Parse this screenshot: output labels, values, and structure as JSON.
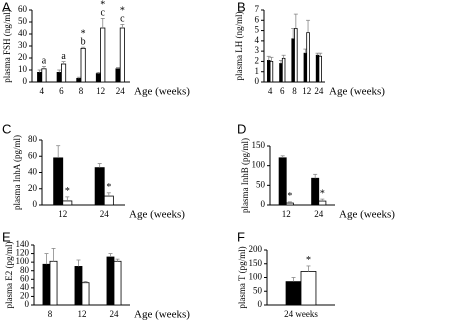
{
  "chart_data": [
    {
      "type": "bar",
      "title": "A",
      "ylabel": "plasma FSH (ng/ml)",
      "xlabel": "Age (weeks)",
      "categories": [
        "4",
        "6",
        "8",
        "12",
        "24"
      ],
      "ylim": [
        0,
        60
      ],
      "yticks": [
        0,
        10,
        20,
        30,
        40,
        50,
        60
      ],
      "series": [
        {
          "color": "#000000",
          "values": [
            8,
            8,
            3,
            7,
            11
          ],
          "errors": [
            2,
            2,
            1,
            1,
            1
          ]
        },
        {
          "color": "#ffffff",
          "values": [
            11,
            15,
            28,
            45,
            45
          ],
          "errors": [
            2,
            2,
            1,
            8,
            3
          ],
          "annotations": [
            [
              "a"
            ],
            [
              "a"
            ],
            [
              "b",
              "*"
            ],
            [
              "c",
              "*"
            ],
            [
              "c",
              "*"
            ]
          ]
        }
      ]
    },
    {
      "type": "bar",
      "title": "B",
      "ylabel": "plasma LH (ng/ml)",
      "xlabel": "Age (weeks)",
      "categories": [
        "4",
        "6",
        "8",
        "12",
        "24"
      ],
      "ylim": [
        0,
        7
      ],
      "yticks": [
        0,
        1,
        2,
        3,
        4,
        5,
        6,
        7
      ],
      "series": [
        {
          "color": "#000000",
          "values": [
            2.1,
            1.8,
            4.2,
            2.8,
            2.6
          ],
          "errors": [
            0.4,
            0.3,
            1.0,
            0.4,
            0.2
          ]
        },
        {
          "color": "#ffffff",
          "values": [
            2.0,
            2.3,
            5.2,
            4.8,
            2.5
          ],
          "errors": [
            0.4,
            0.3,
            1.4,
            1.2,
            0.3
          ]
        }
      ]
    },
    {
      "type": "bar",
      "title": "C",
      "ylabel": "plasma InhA (pg/ml)",
      "xlabel": "Age (weeks)",
      "categories": [
        "12",
        "24"
      ],
      "ylim": [
        0,
        80
      ],
      "yticks": [
        0,
        20,
        40,
        60,
        80
      ],
      "series": [
        {
          "color": "#000000",
          "values": [
            58,
            46
          ],
          "errors": [
            15,
            5
          ]
        },
        {
          "color": "#ffffff",
          "values": [
            5,
            11
          ],
          "errors": [
            5,
            4
          ],
          "annotations": [
            [
              "*"
            ],
            [
              "*"
            ]
          ]
        }
      ]
    },
    {
      "type": "bar",
      "title": "D",
      "ylabel": "plasma InhB (pg/ml)",
      "xlabel": "Age (weeks)",
      "categories": [
        "12",
        "24"
      ],
      "ylim": [
        0,
        150
      ],
      "yticks": [
        0,
        50,
        100,
        150
      ],
      "series": [
        {
          "color": "#000000",
          "values": [
            120,
            68
          ],
          "errors": [
            5,
            10
          ]
        },
        {
          "color": "#ffffff",
          "values": [
            5,
            10
          ],
          "errors": [
            3,
            5
          ],
          "annotations": [
            [
              "*"
            ],
            [
              "*"
            ]
          ]
        }
      ]
    },
    {
      "type": "bar",
      "title": "E",
      "ylabel": "plasma E2 (pg/ml)",
      "xlabel": "Age (weeks)",
      "categories": [
        "8",
        "12",
        "24"
      ],
      "ylim": [
        0,
        140
      ],
      "yticks": [
        0,
        20,
        40,
        60,
        80,
        100,
        120,
        140
      ],
      "series": [
        {
          "color": "#000000",
          "values": [
            95,
            90,
            112
          ],
          "errors": [
            25,
            15,
            8
          ]
        },
        {
          "color": "#ffffff",
          "values": [
            102,
            52,
            102
          ],
          "errors": [
            30,
            3,
            5
          ]
        }
      ]
    },
    {
      "type": "bar",
      "title": "F",
      "ylabel": "plasma T (pg/ml)",
      "categories": [
        "24 weeks"
      ],
      "ylim": [
        0,
        200
      ],
      "yticks": [
        0,
        50,
        100,
        150,
        200
      ],
      "series": [
        {
          "color": "#000000",
          "values": [
            85
          ],
          "errors": [
            15
          ]
        },
        {
          "color": "#ffffff",
          "values": [
            122
          ],
          "errors": [
            20
          ],
          "annotations": [
            [
              "*"
            ]
          ]
        }
      ]
    }
  ]
}
